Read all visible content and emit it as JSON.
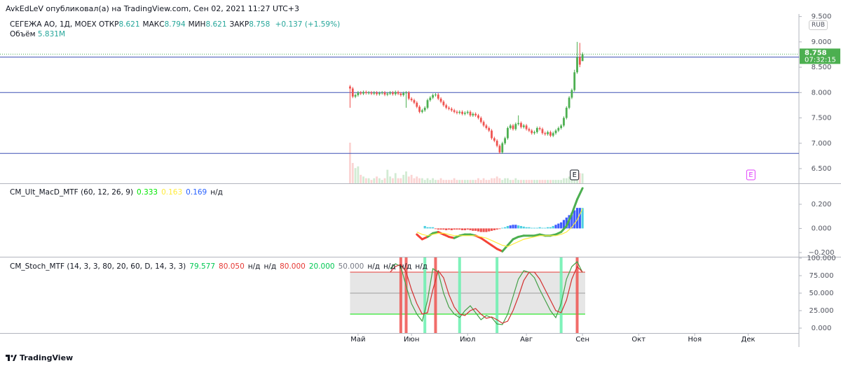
{
  "header": {
    "byline": "AvkEdLeV опубликовал(а) на TradingView.com, Сен 02, 2021 11:27 UTC+3",
    "symbol": "СЕГЕЖА АО, 1Д, MOEX",
    "ohlc": [
      {
        "label": "ОТКР",
        "value": "8.621"
      },
      {
        "label": "МАКС",
        "value": "8.794"
      },
      {
        "label": "МИН",
        "value": "8.621"
      },
      {
        "label": "ЗАКР",
        "value": "8.758"
      }
    ],
    "change": "+0.137 (+1.59%)",
    "volume_label": "Объём",
    "volume_value": "5.831M",
    "currency": "RUB",
    "footer": "TradingView"
  },
  "chart_data": [
    {
      "type": "candlestick",
      "xlim": [
        -131,
        168
      ],
      "ylim": [
        6.21,
        9.55
      ],
      "yticks": [
        {
          "value": 9.5,
          "label": "9.500"
        },
        {
          "value": 9.0,
          "label": "9.000"
        },
        {
          "value": 8.5,
          "label": "8.500"
        },
        {
          "value": 8.0,
          "label": "8.000"
        },
        {
          "value": 7.5,
          "label": "7.500"
        },
        {
          "value": 7.0,
          "label": "7.000"
        },
        {
          "value": 6.5,
          "label": "6.500"
        }
      ],
      "xticks": [
        {
          "value": 3,
          "label": "Май"
        },
        {
          "value": 23,
          "label": "Июн"
        },
        {
          "value": 44,
          "label": "Июл"
        },
        {
          "value": 66,
          "label": "Авг"
        },
        {
          "value": 87,
          "label": "Сен"
        },
        {
          "value": 108,
          "label": "Окт"
        },
        {
          "value": 129,
          "label": "Ноя"
        },
        {
          "value": 149,
          "label": "Дек"
        }
      ],
      "grid": false,
      "up_color": "#4caf50",
      "down_color": "#ef5350",
      "level_color": "#3f51b5",
      "levels": [
        8.7,
        8.0,
        6.8
      ],
      "open": [
        8.12,
        8.08,
        7.92,
        7.95,
        8.0,
        7.98,
        8.01,
        7.99,
        8.0,
        7.98,
        8.0,
        7.97,
        7.99,
        8.0,
        7.96,
        7.98,
        8.0,
        7.97,
        8.01,
        7.98,
        7.95,
        7.99,
        8.0,
        7.88,
        7.85,
        7.8,
        7.72,
        7.62,
        7.65,
        7.7,
        7.85,
        7.9,
        7.95,
        7.96,
        7.88,
        7.82,
        7.75,
        7.7,
        7.68,
        7.65,
        7.62,
        7.6,
        7.62,
        7.58,
        7.6,
        7.62,
        7.55,
        7.58,
        7.55,
        7.5,
        7.42,
        7.35,
        7.3,
        7.25,
        7.1,
        7.05,
        6.95,
        6.82,
        7.0,
        7.1,
        7.3,
        7.35,
        7.28,
        7.38,
        7.4,
        7.32,
        7.35,
        7.28,
        7.25,
        7.2,
        7.22,
        7.3,
        7.28,
        7.2,
        7.18,
        7.22,
        7.15,
        7.2,
        7.25,
        7.3,
        7.35,
        7.5,
        7.7,
        7.9,
        8.05,
        8.4,
        8.7,
        8.621
      ],
      "high": [
        8.15,
        8.11,
        7.98,
        8.03,
        8.03,
        8.04,
        8.04,
        8.03,
        8.03,
        8.03,
        8.03,
        8.02,
        8.03,
        8.03,
        8.01,
        8.03,
        8.03,
        8.04,
        8.04,
        8.01,
        8.02,
        8.03,
        8.03,
        7.91,
        7.88,
        7.83,
        7.75,
        7.68,
        7.73,
        7.88,
        7.93,
        7.98,
        7.99,
        7.99,
        7.91,
        7.85,
        7.78,
        7.73,
        7.71,
        7.68,
        7.65,
        7.65,
        7.65,
        7.63,
        7.65,
        7.65,
        7.61,
        7.61,
        7.58,
        7.53,
        7.45,
        7.38,
        7.33,
        7.28,
        7.13,
        7.08,
        6.98,
        7.03,
        7.13,
        7.33,
        7.38,
        7.38,
        7.41,
        7.55,
        7.43,
        7.38,
        7.38,
        7.31,
        7.28,
        7.25,
        7.33,
        7.33,
        7.31,
        7.23,
        7.25,
        7.25,
        7.23,
        7.28,
        7.33,
        7.38,
        7.53,
        7.73,
        7.93,
        8.08,
        8.45,
        9.0,
        8.98,
        8.794
      ],
      "low": [
        7.7,
        7.89,
        7.89,
        7.92,
        7.95,
        7.95,
        7.96,
        7.96,
        7.95,
        7.95,
        7.94,
        7.94,
        7.96,
        7.93,
        7.93,
        7.95,
        7.94,
        7.94,
        7.95,
        7.92,
        7.92,
        7.7,
        7.85,
        7.82,
        7.77,
        7.69,
        7.59,
        7.59,
        7.62,
        7.67,
        7.82,
        7.87,
        7.92,
        7.85,
        7.79,
        7.72,
        7.67,
        7.65,
        7.62,
        7.59,
        7.57,
        7.57,
        7.55,
        7.55,
        7.57,
        7.52,
        7.52,
        7.52,
        7.47,
        7.39,
        7.32,
        7.27,
        7.22,
        7.07,
        7.02,
        6.92,
        6.79,
        6.79,
        6.97,
        7.07,
        7.27,
        7.25,
        7.25,
        7.35,
        7.29,
        7.29,
        7.25,
        7.22,
        7.17,
        7.17,
        7.19,
        7.25,
        7.17,
        7.15,
        7.15,
        7.12,
        7.12,
        7.17,
        7.22,
        7.27,
        7.32,
        7.47,
        7.67,
        7.87,
        8.02,
        8.37,
        8.5,
        8.621
      ],
      "close": [
        8.08,
        7.92,
        7.95,
        8.0,
        7.98,
        8.01,
        7.99,
        8.0,
        7.98,
        8.0,
        7.97,
        7.99,
        8.0,
        7.96,
        7.98,
        8.0,
        7.97,
        8.01,
        7.98,
        7.95,
        7.99,
        8.0,
        7.88,
        7.85,
        7.8,
        7.72,
        7.62,
        7.65,
        7.7,
        7.85,
        7.9,
        7.95,
        7.96,
        7.88,
        7.82,
        7.75,
        7.7,
        7.68,
        7.65,
        7.62,
        7.6,
        7.62,
        7.58,
        7.6,
        7.62,
        7.55,
        7.58,
        7.55,
        7.5,
        7.42,
        7.35,
        7.3,
        7.25,
        7.1,
        7.05,
        6.95,
        6.82,
        7.0,
        7.1,
        7.3,
        7.35,
        7.28,
        7.38,
        7.4,
        7.32,
        7.35,
        7.28,
        7.25,
        7.2,
        7.22,
        7.3,
        7.28,
        7.2,
        7.18,
        7.22,
        7.15,
        7.2,
        7.25,
        7.3,
        7.35,
        7.5,
        7.7,
        7.9,
        8.05,
        8.4,
        8.7,
        8.55,
        8.758
      ],
      "volume_ylim": [
        0,
        100
      ],
      "volume": [
        24,
        12,
        9,
        10,
        5,
        4,
        3,
        3,
        2,
        3,
        4,
        3,
        2,
        3,
        8,
        4,
        3,
        6,
        3,
        3,
        5,
        7,
        4,
        5,
        3,
        4,
        3,
        3,
        2,
        3,
        2,
        3,
        2,
        2,
        3,
        2,
        2,
        2,
        2,
        3,
        2,
        2,
        2,
        2,
        2,
        2,
        2,
        2,
        3,
        2,
        3,
        2,
        2,
        3,
        3,
        4,
        3,
        2,
        3,
        3,
        2,
        2,
        3,
        2,
        2,
        2,
        2,
        2,
        2,
        2,
        2,
        2,
        2,
        2,
        2,
        2,
        2,
        2,
        2,
        2,
        3,
        3,
        4,
        4,
        5,
        7,
        6,
        5.831
      ],
      "last_price_label": "8.758",
      "countdown": "07:32:15",
      "events": [
        {
          "x": 84,
          "label": "E",
          "color": "#131722"
        },
        {
          "x": 150,
          "label": "E",
          "color": "#e040fb"
        }
      ]
    },
    {
      "type": "line",
      "title": "CM_Ult_MacD_MTF (60, 12, 26, 9)",
      "ylim": [
        -0.235,
        0.368
      ],
      "yticks": [
        {
          "value": 0.2,
          "label": "0.200"
        },
        {
          "value": 0,
          "label": "0.000"
        },
        {
          "value": -0.2,
          "label": "−0.200"
        }
      ],
      "legend_values": [
        {
          "text": "0.333",
          "color": "#00e600"
        },
        {
          "text": "0.163",
          "color": "#ffeb3b"
        },
        {
          "text": "0.169",
          "color": "#2962ff"
        },
        {
          "text": "н/д",
          "color": "#131722"
        }
      ],
      "x": [
        25,
        27,
        29,
        31,
        33,
        35,
        37,
        39,
        41,
        43,
        45,
        47,
        49,
        51,
        53,
        55,
        57,
        59,
        61,
        63,
        65,
        67,
        69,
        71,
        73,
        75,
        77,
        79,
        81,
        83,
        85,
        87
      ],
      "series": [
        {
          "name": "MACD",
          "color": "#4caf50",
          "down_color": "#f44336",
          "values": [
            -0.05,
            -0.09,
            -0.07,
            -0.04,
            -0.03,
            -0.05,
            -0.07,
            -0.08,
            -0.06,
            -0.05,
            -0.05,
            -0.06,
            -0.08,
            -0.11,
            -0.14,
            -0.17,
            -0.19,
            -0.14,
            -0.09,
            -0.07,
            -0.06,
            -0.06,
            -0.06,
            -0.05,
            -0.06,
            -0.06,
            -0.05,
            -0.03,
            0.02,
            0.12,
            0.24,
            0.333
          ]
        },
        {
          "name": "Signal",
          "color": "#ffeb3b",
          "values": [
            -0.03,
            -0.05,
            -0.06,
            -0.05,
            -0.04,
            -0.04,
            -0.05,
            -0.06,
            -0.06,
            -0.06,
            -0.06,
            -0.06,
            -0.07,
            -0.08,
            -0.1,
            -0.12,
            -0.14,
            -0.15,
            -0.13,
            -0.11,
            -0.09,
            -0.08,
            -0.07,
            -0.06,
            -0.06,
            -0.06,
            -0.06,
            -0.05,
            -0.03,
            0.01,
            0.07,
            0.163
          ]
        }
      ],
      "histogram": {
        "positive_color": "#4dd0e1",
        "strong_color": "#3d5afe",
        "negative_color": "#ef5350",
        "x": [
          28,
          29,
          30,
          31,
          32,
          33,
          34,
          35,
          36,
          37,
          38,
          39,
          40,
          41,
          42,
          43,
          44,
          45,
          46,
          47,
          48,
          49,
          50,
          51,
          52,
          53,
          54,
          55,
          56,
          57,
          58,
          59,
          60,
          61,
          62,
          63,
          64,
          65,
          66,
          67,
          68,
          69,
          70,
          71,
          72,
          73,
          74,
          75,
          76,
          77,
          78,
          79,
          80,
          81,
          82,
          83,
          84,
          85,
          86,
          87
        ],
        "values": [
          0.02,
          0.01,
          0.01,
          0.01,
          -0.005,
          -0.01,
          -0.01,
          -0.01,
          -0.015,
          -0.01,
          -0.015,
          -0.01,
          -0.01,
          -0.01,
          -0.015,
          -0.015,
          -0.01,
          -0.015,
          -0.02,
          -0.02,
          -0.025,
          -0.03,
          -0.03,
          -0.03,
          -0.025,
          -0.02,
          -0.015,
          -0.01,
          -0.005,
          0.005,
          0.01,
          0.02,
          0.025,
          0.03,
          0.03,
          0.025,
          0.02,
          0.015,
          0.01,
          0.01,
          0.005,
          0.005,
          0.005,
          0.01,
          0.005,
          0.005,
          0.01,
          0.01,
          0.02,
          0.03,
          0.04,
          0.05,
          0.07,
          0.09,
          0.11,
          0.13,
          0.15,
          0.17,
          0.17,
          0.169
        ]
      }
    },
    {
      "type": "line",
      "title": "CM_Stoch_MTF (14, 3, 3, 80, 20, 60, D, 14, 3, 3)",
      "ylim": [
        -7,
        101
      ],
      "yticks": [
        {
          "value": 100,
          "label": "100.000"
        },
        {
          "value": 75,
          "label": "75.000"
        },
        {
          "value": 50,
          "label": "50.000"
        },
        {
          "value": 25,
          "label": "25.000"
        },
        {
          "value": 0,
          "label": "0.000"
        }
      ],
      "legend_values": [
        {
          "text": "79.577",
          "color": "#00c853"
        },
        {
          "text": "80.050",
          "color": "#e53935"
        },
        {
          "text": "н/д",
          "color": "#131722"
        },
        {
          "text": "н/д",
          "color": "#131722"
        },
        {
          "text": "80.000",
          "color": "#e53935"
        },
        {
          "text": "20.000",
          "color": "#00c853"
        },
        {
          "text": "50.000",
          "color": "#787b86"
        },
        {
          "text": "н/д",
          "color": "#131722"
        },
        {
          "text": "н/д",
          "color": "#131722"
        },
        {
          "text": "н/д",
          "color": "#131722"
        },
        {
          "text": "н/д",
          "color": "#131722"
        }
      ],
      "bands": [
        {
          "value": 80,
          "color": "#e53935"
        },
        {
          "value": 50,
          "color": "#9e9e9e"
        },
        {
          "value": 20,
          "color": "#00e600"
        }
      ],
      "band_fill": "#e6e6e6",
      "signals": [
        {
          "x": 19,
          "color": "#ef5350"
        },
        {
          "x": 21,
          "color": "#ef5350"
        },
        {
          "x": 28,
          "color": "#69f0ae"
        },
        {
          "x": 32,
          "color": "#ef5350"
        },
        {
          "x": 41,
          "color": "#69f0ae"
        },
        {
          "x": 55,
          "color": "#69f0ae"
        },
        {
          "x": 79,
          "color": "#69f0ae"
        },
        {
          "x": 85,
          "color": "#ef5350"
        }
      ],
      "x": [
        15,
        17,
        19,
        21,
        23,
        25,
        27,
        29,
        31,
        33,
        35,
        37,
        39,
        41,
        43,
        45,
        47,
        49,
        51,
        53,
        55,
        57,
        59,
        61,
        63,
        65,
        67,
        69,
        71,
        73,
        75,
        77,
        79,
        81,
        83,
        85,
        87
      ],
      "series": [
        {
          "name": "K",
          "color": "#43a047",
          "values": [
            85,
            92,
            88,
            60,
            35,
            20,
            10,
            40,
            85,
            80,
            50,
            30,
            20,
            15,
            25,
            32,
            22,
            12,
            18,
            15,
            6,
            5,
            20,
            45,
            70,
            82,
            80,
            72,
            55,
            40,
            25,
            15,
            35,
            70,
            88,
            95,
            79.577
          ]
        },
        {
          "name": "D",
          "color": "#d32f2f",
          "values": [
            80,
            88,
            91,
            80,
            55,
            35,
            20,
            22,
            55,
            82,
            72,
            48,
            30,
            20,
            18,
            25,
            28,
            20,
            14,
            16,
            12,
            7,
            10,
            25,
            45,
            68,
            80,
            80,
            70,
            55,
            40,
            25,
            22,
            40,
            70,
            88,
            80.05
          ]
        }
      ]
    }
  ]
}
